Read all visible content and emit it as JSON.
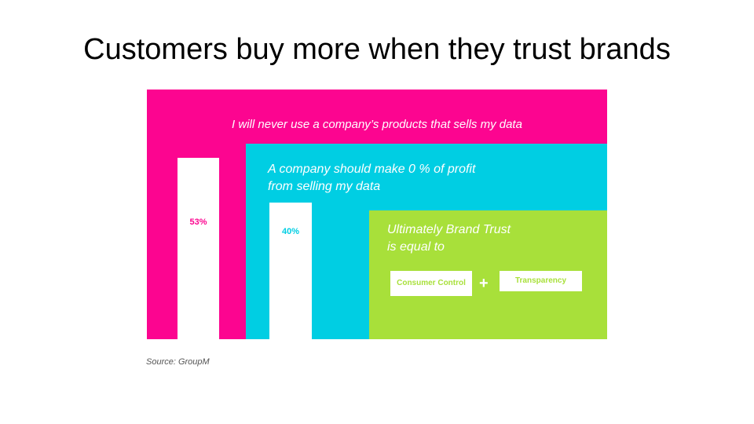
{
  "title": "Customers buy more when they trust brands",
  "colors": {
    "pink": "#fc0590",
    "cyan": "#00cee3",
    "green": "#a8e03a",
    "white": "#ffffff"
  },
  "panels": {
    "pink": {
      "statement": "I  will never use a company’s products that sells my data",
      "value": "53%",
      "percent": 53
    },
    "cyan": {
      "statement_line1": "A company should make 0 % of profit",
      "statement_line2": "from selling my data",
      "value": "40%",
      "percent": 40
    },
    "green": {
      "statement_line1": "Ultimately Brand Trust",
      "statement_line2": "is equal to",
      "box1": "Consumer Control",
      "operator": "+",
      "box2": "Transparency"
    }
  },
  "source": "Source: GroupM"
}
